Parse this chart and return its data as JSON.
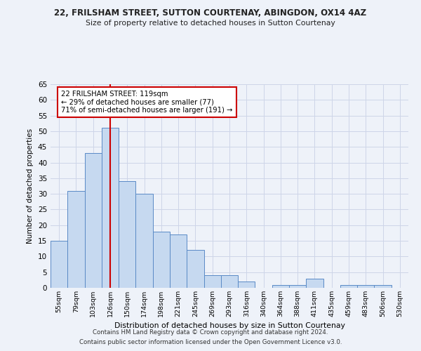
{
  "title1": "22, FRILSHAM STREET, SUTTON COURTENAY, ABINGDON, OX14 4AZ",
  "title2": "Size of property relative to detached houses in Sutton Courtenay",
  "xlabel": "Distribution of detached houses by size in Sutton Courtenay",
  "ylabel": "Number of detached properties",
  "categories": [
    "55sqm",
    "79sqm",
    "103sqm",
    "126sqm",
    "150sqm",
    "174sqm",
    "198sqm",
    "221sqm",
    "245sqm",
    "269sqm",
    "293sqm",
    "316sqm",
    "340sqm",
    "364sqm",
    "388sqm",
    "411sqm",
    "435sqm",
    "459sqm",
    "483sqm",
    "506sqm",
    "530sqm"
  ],
  "values": [
    15,
    31,
    43,
    51,
    34,
    30,
    18,
    17,
    12,
    4,
    4,
    2,
    0,
    1,
    1,
    3,
    0,
    1,
    1,
    1,
    0
  ],
  "bar_color": "#c6d9f0",
  "bar_edge_color": "#5a8ac6",
  "vline_x_idx": 3,
  "vline_color": "#cc0000",
  "annotation_text": "22 FRILSHAM STREET: 119sqm\n← 29% of detached houses are smaller (77)\n71% of semi-detached houses are larger (191) →",
  "annotation_box_color": "white",
  "annotation_box_edge_color": "#cc0000",
  "ylim": [
    0,
    65
  ],
  "yticks": [
    0,
    5,
    10,
    15,
    20,
    25,
    30,
    35,
    40,
    45,
    50,
    55,
    60,
    65
  ],
  "footer1": "Contains HM Land Registry data © Crown copyright and database right 2024.",
  "footer2": "Contains public sector information licensed under the Open Government Licence v3.0.",
  "bg_color": "#eef2f9",
  "grid_color": "#cdd5e8"
}
